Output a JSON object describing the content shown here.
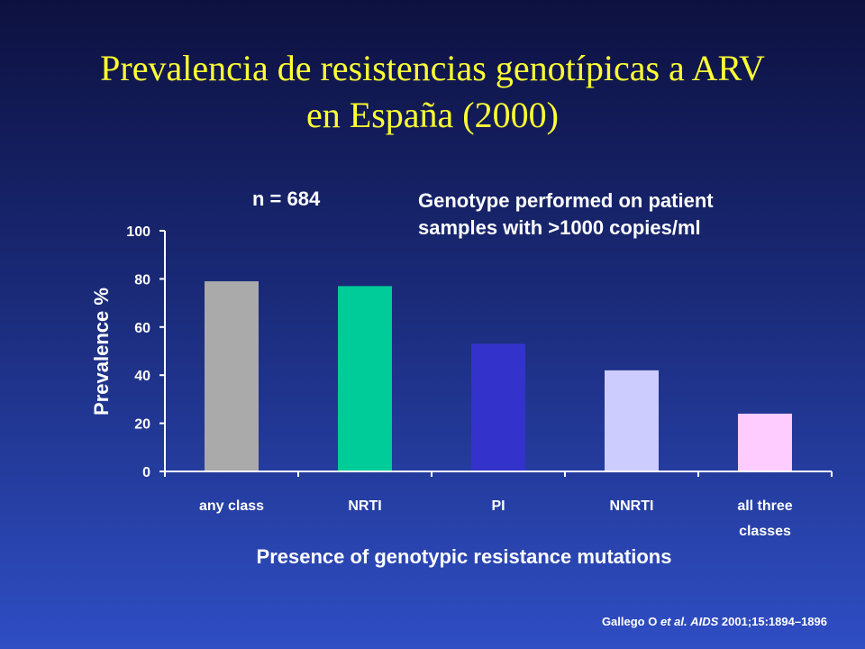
{
  "title": {
    "line1": "Prevalencia de resistencias genotípicas a ARV",
    "line2": "en España (2000)"
  },
  "annotations": {
    "n": "n = 684",
    "genotype_line1": "Genotype performed on patient",
    "genotype_line2": "samples with >1000 copies/ml"
  },
  "citation": {
    "authors": "Gallego O ",
    "etal": "et al.",
    "journal": "AIDS",
    "ref": " 2001;15:1894–1896"
  },
  "chart_data": {
    "type": "bar",
    "ylabel": "Prevalence %",
    "xlabel": "Presence of genotypic resistance mutations",
    "ylim": [
      0,
      100
    ],
    "yticks": [
      "0",
      "20",
      "40",
      "60",
      "80",
      "100"
    ],
    "categories": [
      {
        "line1": "any class",
        "line2": ""
      },
      {
        "line1": "NRTI",
        "line2": ""
      },
      {
        "line1": "PI",
        "line2": ""
      },
      {
        "line1": "NNRTI",
        "line2": ""
      },
      {
        "line1": "all three",
        "line2": "classes"
      }
    ],
    "values": [
      79,
      77,
      53,
      42,
      24
    ],
    "colors": [
      "#aaaaaa",
      "#00cc99",
      "#3333cc",
      "#ccccff",
      "#ffccff"
    ],
    "grid": false,
    "legend": "none"
  }
}
